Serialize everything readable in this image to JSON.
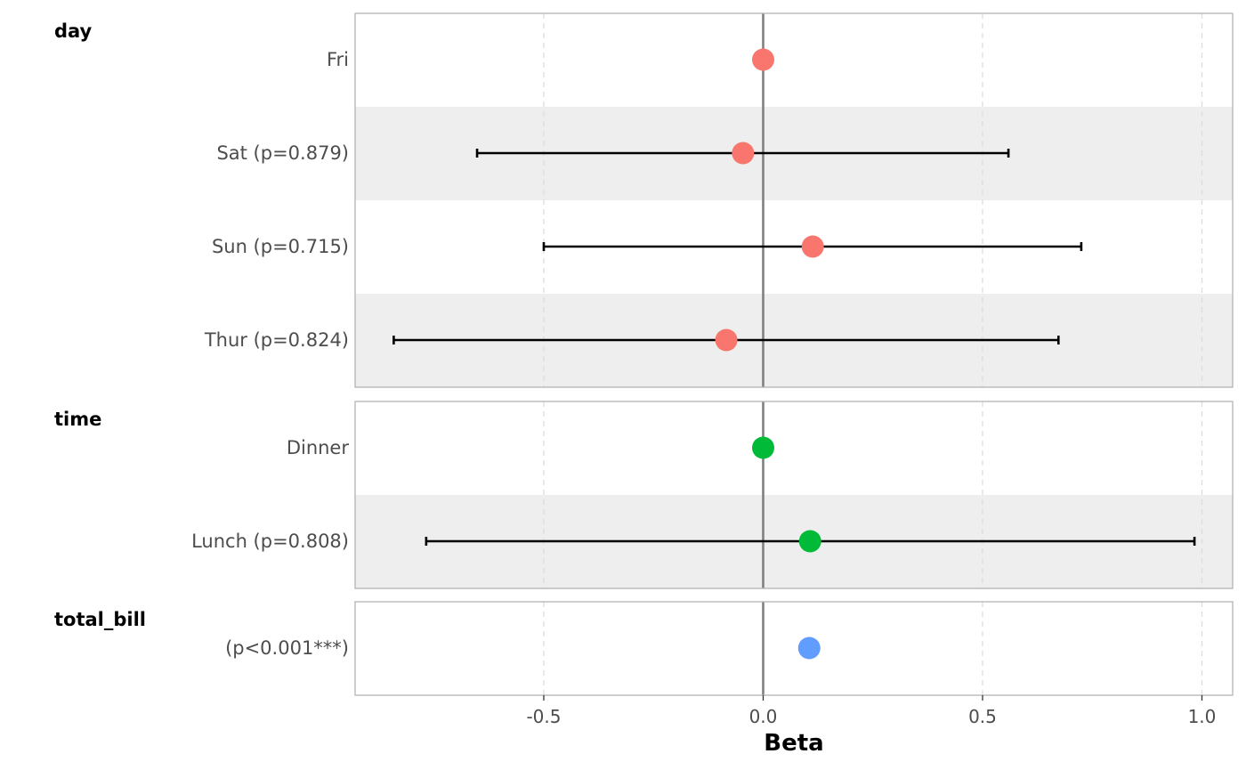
{
  "chart_data": {
    "type": "forest",
    "xlabel": "Beta",
    "xlim": [
      -0.93,
      1.07
    ],
    "x_ticks": [
      -0.5,
      0.0,
      0.5,
      1.0
    ],
    "x_tick_labels": [
      "-0.5",
      "0.0",
      "0.5",
      "1.0"
    ],
    "reference_line": 0,
    "grid": "vertical dashed",
    "row_shading": "alternating light grey",
    "groups": [
      {
        "name": "day",
        "color": "#F8766D",
        "rows": [
          {
            "label": "Fri",
            "estimate": 0.0,
            "lower": null,
            "upper": null
          },
          {
            "label": "Sat (p=0.879)",
            "estimate": -0.046,
            "lower": -0.652,
            "upper": 0.559
          },
          {
            "label": "Sun (p=0.715)",
            "estimate": 0.113,
            "lower": -0.5,
            "upper": 0.725
          },
          {
            "label": "Thur (p=0.824)",
            "estimate": -0.084,
            "lower": -0.842,
            "upper": 0.673
          }
        ]
      },
      {
        "name": "time",
        "color": "#00BA38",
        "rows": [
          {
            "label": "Dinner",
            "estimate": 0.0,
            "lower": null,
            "upper": null
          },
          {
            "label": "Lunch (p=0.808)",
            "estimate": 0.107,
            "lower": -0.768,
            "upper": 0.983
          }
        ]
      },
      {
        "name": "total_bill",
        "color": "#619CFF",
        "rows": [
          {
            "label": "(p<0.001***)",
            "estimate": 0.105,
            "lower": null,
            "upper": null
          }
        ]
      }
    ]
  }
}
